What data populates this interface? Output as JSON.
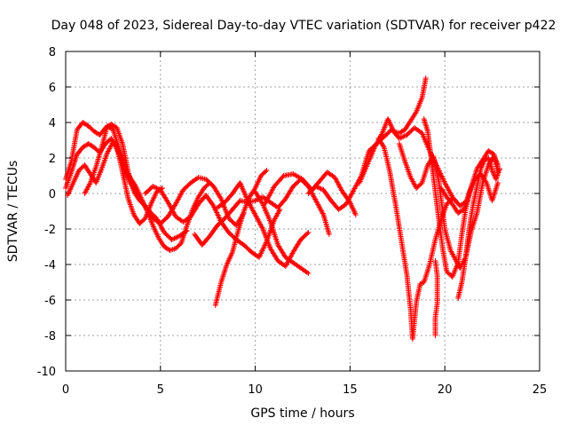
{
  "chart_data": {
    "type": "scatter",
    "title": "Day 048 of 2023, Sidereal Day-to-day VTEC variation (SDTVAR) for receiver p422",
    "xlabel": "GPS time / hours",
    "ylabel": "SDTVAR / TECUs",
    "xlim": [
      0,
      25
    ],
    "ylim": [
      -10,
      8
    ],
    "xticks": [
      0,
      5,
      10,
      15,
      20,
      25
    ],
    "yticks": [
      -10,
      -8,
      -6,
      -4,
      -2,
      0,
      2,
      4,
      6,
      8
    ],
    "grid": true,
    "marker": "+",
    "color": "#ff0000",
    "series": [
      {
        "name": "s1",
        "points": [
          [
            0.0,
            0.3
          ],
          [
            0.3,
            1.2
          ],
          [
            0.6,
            2.2
          ],
          [
            0.9,
            2.6
          ],
          [
            1.2,
            2.8
          ],
          [
            1.5,
            2.6
          ],
          [
            1.8,
            2.3
          ],
          [
            2.1,
            2.8
          ],
          [
            2.4,
            3.1
          ],
          [
            2.7,
            2.6
          ],
          [
            3.0,
            1.2
          ],
          [
            3.3,
            -0.3
          ],
          [
            3.6,
            -1.2
          ],
          [
            3.9,
            -1.7
          ],
          [
            4.2,
            -1.4
          ],
          [
            4.5,
            -0.6
          ],
          [
            4.8,
            0.1
          ],
          [
            5.1,
            0.3
          ]
        ]
      },
      {
        "name": "s2",
        "points": [
          [
            0.0,
            0.8
          ],
          [
            0.3,
            1.8
          ],
          [
            0.6,
            3.6
          ],
          [
            0.9,
            4.0
          ],
          [
            1.2,
            3.8
          ],
          [
            1.5,
            3.5
          ],
          [
            1.8,
            3.3
          ],
          [
            2.1,
            3.7
          ],
          [
            2.4,
            3.9
          ],
          [
            2.7,
            3.7
          ],
          [
            3.0,
            2.8
          ],
          [
            3.3,
            1.2
          ],
          [
            3.6,
            0.1
          ],
          [
            3.9,
            -0.4
          ],
          [
            4.2,
            -0.7
          ],
          [
            4.5,
            -1.1
          ],
          [
            4.8,
            -1.4
          ],
          [
            5.2,
            -2.2
          ],
          [
            5.6,
            -2.6
          ],
          [
            6.0,
            -2.4
          ],
          [
            6.4,
            -2.1
          ]
        ]
      },
      {
        "name": "s3",
        "points": [
          [
            0.1,
            -0.1
          ],
          [
            0.4,
            0.6
          ],
          [
            0.7,
            1.3
          ],
          [
            1.0,
            1.6
          ],
          [
            1.3,
            1.1
          ],
          [
            1.6,
            0.6
          ],
          [
            1.9,
            1.4
          ],
          [
            2.2,
            2.3
          ],
          [
            2.5,
            2.9
          ],
          [
            2.8,
            2.3
          ],
          [
            3.1,
            1.3
          ],
          [
            3.4,
            0.6
          ],
          [
            3.7,
            0.1
          ],
          [
            4.0,
            -0.4
          ],
          [
            4.3,
            -0.9
          ],
          [
            4.6,
            -1.4
          ],
          [
            5.0,
            -1.7
          ],
          [
            5.4,
            -1.3
          ],
          [
            5.8,
            -0.6
          ],
          [
            6.2,
            0.2
          ],
          [
            6.6,
            0.6
          ],
          [
            7.0,
            0.9
          ],
          [
            7.4,
            0.8
          ],
          [
            7.8,
            0.4
          ],
          [
            8.2,
            -0.3
          ],
          [
            8.6,
            -1.4
          ],
          [
            9.0,
            -1.8
          ],
          [
            9.4,
            -1.1
          ]
        ]
      },
      {
        "name": "s4",
        "points": [
          [
            1.0,
            0.0
          ],
          [
            1.3,
            0.6
          ],
          [
            1.6,
            1.5
          ],
          [
            1.9,
            2.6
          ],
          [
            2.2,
            3.8
          ],
          [
            2.5,
            3.6
          ],
          [
            2.8,
            2.6
          ],
          [
            3.1,
            1.5
          ],
          [
            3.4,
            0.9
          ],
          [
            3.7,
            0.4
          ],
          [
            4.0,
            -0.3
          ],
          [
            4.3,
            -1.0
          ],
          [
            4.6,
            -1.8
          ],
          [
            4.9,
            -2.5
          ],
          [
            5.2,
            -3.0
          ],
          [
            5.5,
            -3.2
          ],
          [
            5.8,
            -3.1
          ],
          [
            6.1,
            -2.8
          ],
          [
            6.4,
            -1.8
          ],
          [
            6.7,
            -0.9
          ],
          [
            7.0,
            -0.2
          ],
          [
            7.3,
            0.3
          ],
          [
            7.6,
            0.6
          ]
        ]
      },
      {
        "name": "s5",
        "points": [
          [
            4.2,
            0.0
          ],
          [
            4.6,
            0.4
          ],
          [
            5.0,
            0.2
          ],
          [
            5.4,
            -0.5
          ],
          [
            5.8,
            -1.3
          ],
          [
            6.2,
            -1.6
          ],
          [
            6.6,
            -1.3
          ],
          [
            7.0,
            -0.6
          ],
          [
            7.4,
            -0.1
          ],
          [
            7.8,
            -0.7
          ],
          [
            8.2,
            -1.6
          ],
          [
            8.6,
            -2.2
          ],
          [
            9.0,
            -2.6
          ],
          [
            9.4,
            -2.9
          ],
          [
            9.8,
            -3.3
          ],
          [
            10.2,
            -3.6
          ],
          [
            10.6,
            -2.7
          ],
          [
            11.0,
            -1.5
          ],
          [
            11.3,
            -0.9
          ]
        ]
      },
      {
        "name": "s6",
        "points": [
          [
            6.8,
            -2.3
          ],
          [
            7.2,
            -2.9
          ],
          [
            7.6,
            -2.4
          ],
          [
            8.0,
            -1.8
          ],
          [
            8.4,
            -1.4
          ],
          [
            8.8,
            -0.9
          ],
          [
            9.2,
            -0.4
          ],
          [
            9.6,
            -0.5
          ],
          [
            10.0,
            -0.4
          ],
          [
            10.4,
            -0.2
          ],
          [
            10.8,
            -0.5
          ],
          [
            11.2,
            -0.8
          ],
          [
            11.6,
            -0.3
          ],
          [
            12.0,
            0.4
          ],
          [
            12.4,
            0.8
          ],
          [
            12.8,
            0.4
          ],
          [
            13.2,
            -0.4
          ],
          [
            13.6,
            -1.2
          ],
          [
            13.9,
            -2.3
          ]
        ]
      },
      {
        "name": "s7",
        "points": [
          [
            7.9,
            -6.3
          ],
          [
            8.2,
            -5.0
          ],
          [
            8.5,
            -4.0
          ],
          [
            8.8,
            -3.3
          ],
          [
            9.1,
            -2.1
          ],
          [
            9.4,
            -1.0
          ],
          [
            9.7,
            -0.2
          ],
          [
            10.0,
            0.3
          ],
          [
            10.3,
            1.0
          ],
          [
            10.6,
            1.3
          ]
        ]
      },
      {
        "name": "s8",
        "points": [
          [
            8.0,
            -0.8
          ],
          [
            8.4,
            -0.5
          ],
          [
            8.8,
            0.0
          ],
          [
            9.2,
            0.6
          ],
          [
            9.6,
            -0.4
          ],
          [
            10.0,
            -1.2
          ],
          [
            10.4,
            -2.0
          ],
          [
            10.8,
            -3.1
          ],
          [
            11.2,
            -3.8
          ],
          [
            11.6,
            -4.1
          ],
          [
            12.0,
            -3.3
          ],
          [
            12.4,
            -2.6
          ],
          [
            12.8,
            -2.2
          ]
        ]
      },
      {
        "name": "s9",
        "points": [
          [
            10.0,
            0.1
          ],
          [
            10.4,
            -0.6
          ],
          [
            10.8,
            -1.6
          ],
          [
            11.2,
            -2.9
          ],
          [
            11.6,
            -3.6
          ],
          [
            12.0,
            -3.9
          ],
          [
            12.4,
            -4.2
          ],
          [
            12.8,
            -4.5
          ]
        ]
      },
      {
        "name": "s10",
        "points": [
          [
            10.5,
            -0.6
          ],
          [
            11.0,
            0.4
          ],
          [
            11.5,
            1.0
          ],
          [
            12.0,
            1.1
          ],
          [
            12.5,
            0.8
          ],
          [
            13.0,
            0.2
          ],
          [
            13.4,
            0.7
          ],
          [
            13.8,
            1.2
          ],
          [
            14.2,
            0.9
          ],
          [
            14.6,
            0.1
          ],
          [
            15.0,
            -0.5
          ],
          [
            15.3,
            -1.2
          ]
        ]
      },
      {
        "name": "s11",
        "points": [
          [
            12.8,
            0.0
          ],
          [
            13.2,
            0.4
          ],
          [
            13.6,
            0.2
          ],
          [
            14.0,
            -0.4
          ],
          [
            14.4,
            -0.9
          ],
          [
            14.8,
            -0.6
          ],
          [
            15.2,
            0.2
          ],
          [
            15.6,
            1.0
          ],
          [
            16.0,
            2.4
          ],
          [
            16.4,
            2.8
          ],
          [
            16.8,
            3.2
          ],
          [
            17.2,
            3.6
          ],
          [
            17.6,
            3.1
          ],
          [
            18.0,
            3.3
          ],
          [
            18.4,
            3.7
          ],
          [
            18.8,
            3.4
          ],
          [
            19.2,
            2.4
          ],
          [
            19.6,
            1.5
          ],
          [
            20.0,
            0.6
          ],
          [
            20.4,
            -0.2
          ],
          [
            20.8,
            -0.7
          ],
          [
            21.2,
            -0.4
          ]
        ]
      },
      {
        "name": "s12",
        "points": [
          [
            15.5,
            0.6
          ],
          [
            15.9,
            1.6
          ],
          [
            16.3,
            2.6
          ],
          [
            16.7,
            3.4
          ],
          [
            17.0,
            4.2
          ],
          [
            17.3,
            3.5
          ],
          [
            17.6,
            3.4
          ],
          [
            17.9,
            3.6
          ],
          [
            18.2,
            4.1
          ],
          [
            18.5,
            4.6
          ],
          [
            18.8,
            5.4
          ],
          [
            19.0,
            6.5
          ]
        ]
      },
      {
        "name": "s13",
        "points": [
          [
            16.5,
            3.1
          ],
          [
            16.8,
            2.6
          ],
          [
            17.1,
            1.2
          ],
          [
            17.4,
            -0.6
          ],
          [
            17.7,
            -2.6
          ],
          [
            18.0,
            -4.6
          ],
          [
            18.2,
            -6.6
          ],
          [
            18.3,
            -8.2
          ],
          [
            18.5,
            -6.1
          ],
          [
            18.7,
            -5.1
          ],
          [
            18.9,
            -5.0
          ],
          [
            19.2,
            -4.0
          ],
          [
            19.5,
            -2.6
          ],
          [
            19.8,
            -1.5
          ],
          [
            20.1,
            -0.6
          ],
          [
            20.4,
            -0.3
          ]
        ]
      },
      {
        "name": "s14",
        "points": [
          [
            17.6,
            2.8
          ],
          [
            17.9,
            1.8
          ],
          [
            18.2,
            0.9
          ],
          [
            18.5,
            0.3
          ],
          [
            18.8,
            0.6
          ],
          [
            19.1,
            1.6
          ],
          [
            19.4,
            2.1
          ],
          [
            19.7,
            0.6
          ],
          [
            20.0,
            -2.0
          ],
          [
            20.3,
            -3.2
          ],
          [
            20.6,
            -3.8
          ],
          [
            20.8,
            -4.2
          ],
          [
            21.1,
            -3.6
          ],
          [
            21.4,
            -2.1
          ],
          [
            21.7,
            -1.1
          ],
          [
            22.0,
            0.6
          ],
          [
            22.3,
            1.6
          ],
          [
            22.6,
            2.1
          ],
          [
            22.8,
            1.6
          ]
        ]
      },
      {
        "name": "s15",
        "points": [
          [
            18.9,
            4.2
          ],
          [
            19.1,
            3.5
          ],
          [
            19.3,
            1.8
          ],
          [
            19.5,
            0.1
          ],
          [
            19.7,
            -1.6
          ],
          [
            19.9,
            -3.2
          ],
          [
            20.1,
            -4.4
          ],
          [
            20.4,
            -4.7
          ],
          [
            20.7,
            -3.9
          ],
          [
            20.9,
            -2.3
          ],
          [
            21.1,
            -0.9
          ],
          [
            21.4,
            0.4
          ],
          [
            21.7,
            1.4
          ],
          [
            22.0,
            1.9
          ],
          [
            22.3,
            2.4
          ],
          [
            22.6,
            2.2
          ],
          [
            22.8,
            1.1
          ]
        ]
      },
      {
        "name": "s16",
        "points": [
          [
            19.5,
            -3.8
          ],
          [
            19.6,
            -4.6
          ],
          [
            19.6,
            -5.4
          ],
          [
            19.6,
            -6.2
          ],
          [
            19.5,
            -7.0
          ],
          [
            19.5,
            -8.0
          ]
        ]
      },
      {
        "name": "s17",
        "points": [
          [
            20.7,
            -5.9
          ],
          [
            20.9,
            -5.0
          ],
          [
            21.1,
            -3.6
          ],
          [
            21.3,
            -1.9
          ],
          [
            21.5,
            -0.6
          ],
          [
            21.7,
            0.4
          ],
          [
            21.9,
            1.4
          ],
          [
            22.1,
            1.9
          ],
          [
            22.3,
            2.0
          ],
          [
            22.5,
            1.3
          ],
          [
            22.7,
            0.8
          ],
          [
            22.9,
            1.4
          ]
        ]
      },
      {
        "name": "s18",
        "points": [
          [
            19.8,
            0.3
          ],
          [
            20.1,
            -0.2
          ],
          [
            20.4,
            -0.6
          ],
          [
            20.7,
            -1.1
          ],
          [
            21.0,
            -0.9
          ],
          [
            21.3,
            0.1
          ],
          [
            21.6,
            0.8
          ],
          [
            21.9,
            1.1
          ],
          [
            22.2,
            0.6
          ],
          [
            22.5,
            -0.4
          ],
          [
            22.8,
            0.6
          ]
        ]
      }
    ]
  }
}
